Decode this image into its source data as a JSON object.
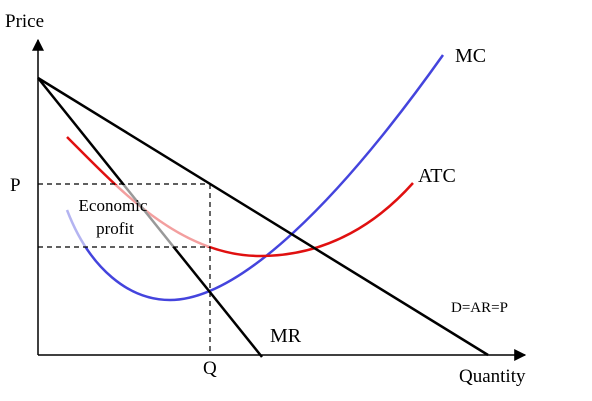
{
  "axes": {
    "y_label": "Price",
    "x_label": "Quantity",
    "price_mark": "P",
    "quantity_mark": "Q"
  },
  "curves": {
    "mc": "MC",
    "atc": "ATC",
    "mr": "MR",
    "demand": "D=AR=P"
  },
  "region": {
    "label_lines": [
      "Economic",
      "profit"
    ]
  }
}
